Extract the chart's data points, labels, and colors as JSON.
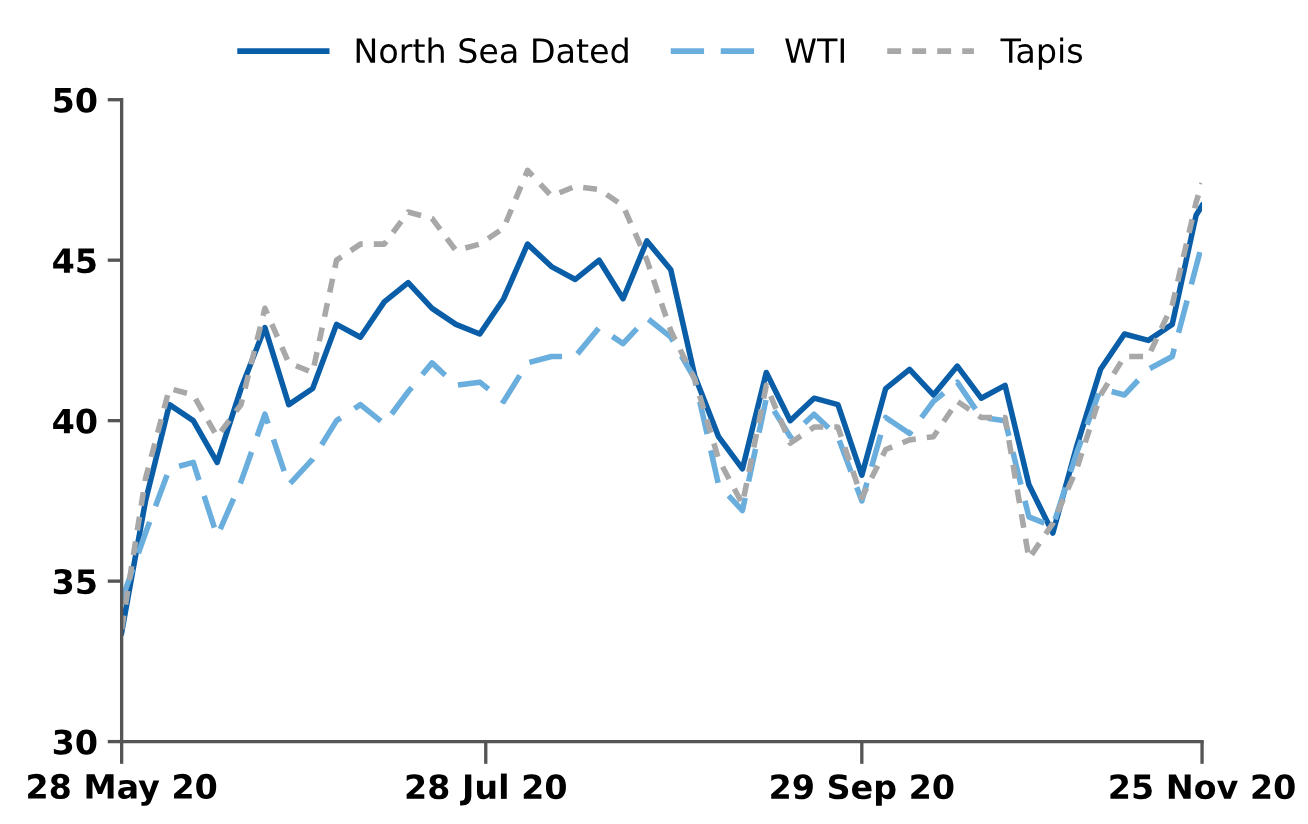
{
  "chart_data": {
    "type": "line",
    "x": [
      "2020-05-28",
      "2020-06-01",
      "2020-06-05",
      "2020-06-09",
      "2020-06-13",
      "2020-06-17",
      "2020-06-21",
      "2020-06-25",
      "2020-06-29",
      "2020-07-03",
      "2020-07-07",
      "2020-07-11",
      "2020-07-15",
      "2020-07-19",
      "2020-07-23",
      "2020-07-27",
      "2020-07-31",
      "2020-08-04",
      "2020-08-08",
      "2020-08-12",
      "2020-08-16",
      "2020-08-20",
      "2020-08-24",
      "2020-08-28",
      "2020-09-01",
      "2020-09-05",
      "2020-09-09",
      "2020-09-13",
      "2020-09-17",
      "2020-09-21",
      "2020-09-25",
      "2020-09-29",
      "2020-10-03",
      "2020-10-07",
      "2020-10-11",
      "2020-10-15",
      "2020-10-19",
      "2020-10-23",
      "2020-10-27",
      "2020-10-31",
      "2020-11-04",
      "2020-11-08",
      "2020-11-12",
      "2020-11-16",
      "2020-11-20",
      "2020-11-24",
      "2020-11-25"
    ],
    "series": [
      {
        "name": "North Sea Dated",
        "color": "#0a5ea8",
        "line_style": "solid",
        "values": [
          33.4,
          37.5,
          40.5,
          40.0,
          38.7,
          41.0,
          42.9,
          40.5,
          41.0,
          43.0,
          42.6,
          43.7,
          44.3,
          43.5,
          43.0,
          42.7,
          43.8,
          45.5,
          44.8,
          44.4,
          45.0,
          43.8,
          45.6,
          44.7,
          41.4,
          39.5,
          38.5,
          41.5,
          40.0,
          40.7,
          40.5,
          38.3,
          41.0,
          41.6,
          40.8,
          41.7,
          40.7,
          41.1,
          38.0,
          36.5,
          39.2,
          41.6,
          42.7,
          42.5,
          43.0,
          46.4,
          46.7
        ]
      },
      {
        "name": "WTI",
        "color": "#6aaede",
        "line_style": "dashed",
        "values": [
          34.4,
          36.5,
          38.5,
          38.7,
          36.4,
          38.1,
          40.2,
          38.0,
          38.8,
          40.0,
          40.5,
          39.9,
          40.9,
          41.8,
          41.1,
          41.2,
          40.6,
          41.8,
          42.0,
          42.0,
          42.9,
          42.4,
          43.2,
          42.6,
          41.3,
          38.0,
          37.2,
          40.7,
          39.5,
          40.2,
          39.5,
          37.5,
          40.1,
          39.6,
          40.6,
          41.2,
          40.1,
          40.0,
          37.0,
          36.7,
          39.0,
          41.0,
          40.8,
          41.6,
          42.0,
          44.8,
          45.5
        ]
      },
      {
        "name": "Tapis",
        "color": "#a8a8a8",
        "line_style": "dotted",
        "values": [
          33.5,
          38.2,
          41.0,
          40.8,
          39.5,
          40.5,
          43.5,
          41.8,
          41.5,
          45.0,
          45.5,
          45.5,
          46.5,
          46.3,
          45.3,
          45.5,
          46.0,
          47.8,
          47.0,
          47.3,
          47.2,
          46.7,
          45.0,
          42.8,
          41.3,
          38.8,
          37.4,
          41.1,
          39.3,
          39.8,
          39.8,
          37.6,
          39.1,
          39.4,
          39.5,
          40.6,
          40.1,
          40.1,
          35.7,
          36.8,
          38.5,
          40.8,
          42.0,
          42.0,
          43.6,
          46.8,
          47.4
        ]
      }
    ],
    "xlim": [
      "2020-05-28",
      "2020-11-25"
    ],
    "xticks": [
      {
        "value": "2020-05-28",
        "label": "28 May 20"
      },
      {
        "value": "2020-07-28",
        "label": "28 Jul 20"
      },
      {
        "value": "2020-09-29",
        "label": "29 Sep 20"
      },
      {
        "value": "2020-11-25",
        "label": "25 Nov 20"
      }
    ],
    "ylim": [
      30,
      50
    ],
    "yticks": [
      30,
      35,
      40,
      45,
      50
    ],
    "legend": "top"
  }
}
